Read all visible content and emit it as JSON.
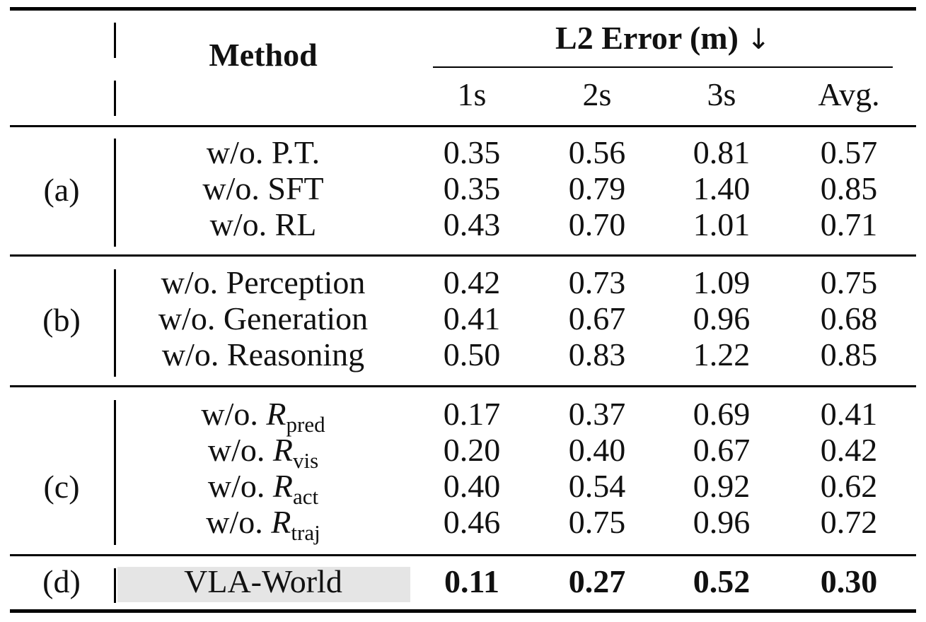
{
  "header": {
    "method": "Method",
    "metric": "L2 Error (m)",
    "arrow": "↓",
    "cols": [
      "1s",
      "2s",
      "3s",
      "Avg."
    ]
  },
  "groups": [
    {
      "label": "(a)",
      "rows": [
        {
          "method": "w/o. P.T.",
          "values": [
            "0.35",
            "0.56",
            "0.81",
            "0.57"
          ]
        },
        {
          "method": "w/o. SFT",
          "values": [
            "0.35",
            "0.79",
            "1.40",
            "0.85"
          ]
        },
        {
          "method": "w/o. RL",
          "values": [
            "0.43",
            "0.70",
            "1.01",
            "0.71"
          ]
        }
      ]
    },
    {
      "label": "(b)",
      "rows": [
        {
          "method": "w/o. Perception",
          "values": [
            "0.42",
            "0.73",
            "1.09",
            "0.75"
          ]
        },
        {
          "method": "w/o. Generation",
          "values": [
            "0.41",
            "0.67",
            "0.96",
            "0.68"
          ]
        },
        {
          "method": "w/o. Reasoning",
          "values": [
            "0.50",
            "0.83",
            "1.22",
            "0.85"
          ]
        }
      ]
    },
    {
      "label": "(c)",
      "rows": [
        {
          "method_prefix": "w/o.",
          "method_symbol": "R",
          "method_sub": "pred",
          "values": [
            "0.17",
            "0.37",
            "0.69",
            "0.41"
          ]
        },
        {
          "method_prefix": "w/o.",
          "method_symbol": "R",
          "method_sub": "vis",
          "values": [
            "0.20",
            "0.40",
            "0.67",
            "0.42"
          ]
        },
        {
          "method_prefix": "w/o.",
          "method_symbol": "R",
          "method_sub": "act",
          "values": [
            "0.40",
            "0.54",
            "0.92",
            "0.62"
          ]
        },
        {
          "method_prefix": "w/o.",
          "method_symbol": "R",
          "method_sub": "traj",
          "values": [
            "0.46",
            "0.75",
            "0.96",
            "0.72"
          ]
        }
      ]
    },
    {
      "label": "(d)",
      "rows": [
        {
          "method": "VLA-World",
          "values": [
            "0.11",
            "0.27",
            "0.52",
            "0.30"
          ]
        }
      ]
    }
  ],
  "colors": {
    "highlight": "#e5e5e5",
    "rule": "#000000"
  }
}
